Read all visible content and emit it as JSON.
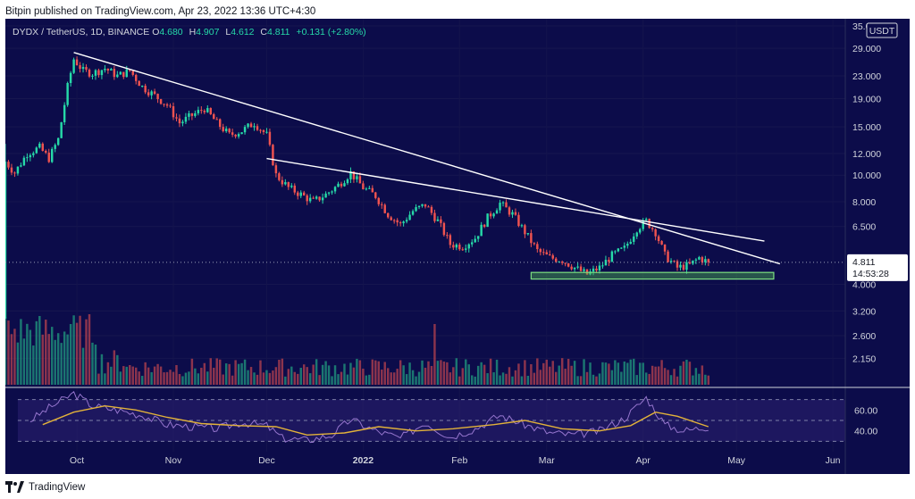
{
  "header": {
    "publisher": "Bitpin published on TradingView.com, Apr 23, 2022 13:36 UTC+4:30"
  },
  "legend": {
    "symbol": "DYDX / TetherUS, 1D, BINANCE",
    "open_label": "O",
    "open": "4.680",
    "high_label": "H",
    "high": "4.907",
    "low_label": "L",
    "low": "4.612",
    "close_label": "C",
    "close": "4.811",
    "change": "+0.131 (+2.80%)"
  },
  "price_axis": {
    "currency": "USDT",
    "current_price": "4.811",
    "countdown": "14:53:28"
  },
  "footer": {
    "brand": "TradingView"
  },
  "colors": {
    "background": "#0c0c4a",
    "up": "#26d9a8",
    "down": "#ef5350",
    "trendline": "#ffffff",
    "support_zone": "#4caf50",
    "rsi_line": "#9575cd",
    "rsi_ma": "#e2b23a"
  },
  "chart_data": [
    {
      "type": "candlestick",
      "scale": "log",
      "ylim": [
        2.0,
        35.0
      ],
      "yticks": [
        "35.000",
        "29.000",
        "23.000",
        "19.000",
        "15.000",
        "12.000",
        "10.000",
        "8.000",
        "6.500",
        "4.000",
        "3.200",
        "2.600",
        "2.150"
      ],
      "xticks": [
        "Oct",
        "Nov",
        "Dec",
        "2022",
        "Feb",
        "Mar",
        "Apr",
        "May",
        "Jun"
      ],
      "x_range": [
        "2021-09-08",
        "2022-06-05"
      ],
      "close_series": [
        {
          "date": "2021-09-08",
          "close": 11.2
        },
        {
          "date": "2021-09-11",
          "close": 10.2
        },
        {
          "date": "2021-09-15",
          "close": 12.0
        },
        {
          "date": "2021-09-19",
          "close": 12.6
        },
        {
          "date": "2021-09-22",
          "close": 11.5
        },
        {
          "date": "2021-09-25",
          "close": 13.5
        },
        {
          "date": "2021-09-28",
          "close": 21.0
        },
        {
          "date": "2021-09-30",
          "close": 26.5
        },
        {
          "date": "2021-10-03",
          "close": 24.0
        },
        {
          "date": "2021-10-06",
          "close": 23.5
        },
        {
          "date": "2021-10-10",
          "close": 24.5
        },
        {
          "date": "2021-10-14",
          "close": 23.0
        },
        {
          "date": "2021-10-18",
          "close": 24.0
        },
        {
          "date": "2021-10-22",
          "close": 21.0
        },
        {
          "date": "2021-10-26",
          "close": 19.5
        },
        {
          "date": "2021-10-30",
          "close": 18.0
        },
        {
          "date": "2021-11-03",
          "close": 15.5
        },
        {
          "date": "2021-11-07",
          "close": 16.5
        },
        {
          "date": "2021-11-11",
          "close": 17.5
        },
        {
          "date": "2021-11-15",
          "close": 15.5
        },
        {
          "date": "2021-11-19",
          "close": 14.0
        },
        {
          "date": "2021-11-23",
          "close": 14.5
        },
        {
          "date": "2021-11-27",
          "close": 15.5
        },
        {
          "date": "2021-12-01",
          "close": 14.0
        },
        {
          "date": "2021-12-04",
          "close": 10.0
        },
        {
          "date": "2021-12-08",
          "close": 9.0
        },
        {
          "date": "2021-12-12",
          "close": 8.5
        },
        {
          "date": "2021-12-16",
          "close": 8.0
        },
        {
          "date": "2021-12-20",
          "close": 8.5
        },
        {
          "date": "2021-12-24",
          "close": 9.2
        },
        {
          "date": "2021-12-28",
          "close": 10.2
        },
        {
          "date": "2022-01-01",
          "close": 9.0
        },
        {
          "date": "2022-01-05",
          "close": 8.4
        },
        {
          "date": "2022-01-09",
          "close": 7.2
        },
        {
          "date": "2022-01-13",
          "close": 6.6
        },
        {
          "date": "2022-01-17",
          "close": 7.4
        },
        {
          "date": "2022-01-21",
          "close": 7.8
        },
        {
          "date": "2022-01-25",
          "close": 6.8
        },
        {
          "date": "2022-01-29",
          "close": 5.6
        },
        {
          "date": "2022-02-02",
          "close": 5.5
        },
        {
          "date": "2022-02-06",
          "close": 5.9
        },
        {
          "date": "2022-02-10",
          "close": 7.0
        },
        {
          "date": "2022-02-14",
          "close": 7.9
        },
        {
          "date": "2022-02-18",
          "close": 7.2
        },
        {
          "date": "2022-02-22",
          "close": 6.2
        },
        {
          "date": "2022-02-26",
          "close": 5.3
        },
        {
          "date": "2022-03-02",
          "close": 5.0
        },
        {
          "date": "2022-03-06",
          "close": 4.9
        },
        {
          "date": "2022-03-10",
          "close": 4.6
        },
        {
          "date": "2022-03-14",
          "close": 4.35
        },
        {
          "date": "2022-03-18",
          "close": 4.6
        },
        {
          "date": "2022-03-22",
          "close": 5.1
        },
        {
          "date": "2022-03-26",
          "close": 5.4
        },
        {
          "date": "2022-03-30",
          "close": 6.4
        },
        {
          "date": "2022-04-02",
          "close": 6.8
        },
        {
          "date": "2022-04-05",
          "close": 6.2
        },
        {
          "date": "2022-04-08",
          "close": 5.1
        },
        {
          "date": "2022-04-12",
          "close": 4.6
        },
        {
          "date": "2022-04-16",
          "close": 4.7
        },
        {
          "date": "2022-04-19",
          "close": 5.0
        },
        {
          "date": "2022-04-22",
          "close": 4.811
        }
      ],
      "trendlines": [
        {
          "from": {
            "date": "2021-09-30",
            "price": 28.0
          },
          "to": {
            "date": "2022-05-15",
            "price": 4.75
          }
        },
        {
          "from": {
            "date": "2021-12-01",
            "price": 11.5
          },
          "to": {
            "date": "2022-05-10",
            "price": 5.75
          }
        }
      ],
      "support_zone": {
        "from_date": "2022-02-24",
        "to_date": "2022-05-13",
        "low": 4.18,
        "high": 4.42
      },
      "last_price": 4.811
    },
    {
      "type": "bar",
      "name": "volume",
      "x_range": [
        "2021-09-08",
        "2022-04-22"
      ],
      "note": "relative daily volume bars colored by candle direction"
    },
    {
      "type": "line",
      "name": "RSI",
      "ylim": [
        20,
        80
      ],
      "yticks": [
        "60.00",
        "40.00"
      ],
      "bands": [
        70,
        50,
        30
      ],
      "rsi_points": [
        {
          "date": "2021-09-16",
          "value": 50
        },
        {
          "date": "2021-09-22",
          "value": 62
        },
        {
          "date": "2021-09-30",
          "value": 76
        },
        {
          "date": "2021-10-06",
          "value": 64
        },
        {
          "date": "2021-10-14",
          "value": 60
        },
        {
          "date": "2021-10-22",
          "value": 55
        },
        {
          "date": "2021-10-30",
          "value": 46
        },
        {
          "date": "2021-11-07",
          "value": 44
        },
        {
          "date": "2021-11-15",
          "value": 42
        },
        {
          "date": "2021-11-23",
          "value": 48
        },
        {
          "date": "2021-12-01",
          "value": 45
        },
        {
          "date": "2021-12-06",
          "value": 33
        },
        {
          "date": "2021-12-14",
          "value": 31
        },
        {
          "date": "2021-12-22",
          "value": 36
        },
        {
          "date": "2021-12-28",
          "value": 51
        },
        {
          "date": "2022-01-05",
          "value": 40
        },
        {
          "date": "2022-01-13",
          "value": 33
        },
        {
          "date": "2022-01-21",
          "value": 48
        },
        {
          "date": "2022-01-29",
          "value": 34
        },
        {
          "date": "2022-02-06",
          "value": 42
        },
        {
          "date": "2022-02-14",
          "value": 55
        },
        {
          "date": "2022-02-22",
          "value": 46
        },
        {
          "date": "2022-03-02",
          "value": 38
        },
        {
          "date": "2022-03-10",
          "value": 36
        },
        {
          "date": "2022-03-18",
          "value": 40
        },
        {
          "date": "2022-03-26",
          "value": 52
        },
        {
          "date": "2022-04-02",
          "value": 72
        },
        {
          "date": "2022-04-08",
          "value": 46
        },
        {
          "date": "2022-04-14",
          "value": 40
        },
        {
          "date": "2022-04-22",
          "value": 44
        }
      ],
      "rsi_ma_points": [
        {
          "date": "2021-09-20",
          "value": 46
        },
        {
          "date": "2021-09-30",
          "value": 58
        },
        {
          "date": "2021-10-10",
          "value": 64
        },
        {
          "date": "2021-10-20",
          "value": 60
        },
        {
          "date": "2021-10-30",
          "value": 53
        },
        {
          "date": "2021-11-10",
          "value": 47
        },
        {
          "date": "2021-11-22",
          "value": 45
        },
        {
          "date": "2021-12-04",
          "value": 44
        },
        {
          "date": "2021-12-14",
          "value": 36
        },
        {
          "date": "2021-12-26",
          "value": 38
        },
        {
          "date": "2022-01-06",
          "value": 44
        },
        {
          "date": "2022-01-18",
          "value": 40
        },
        {
          "date": "2022-01-30",
          "value": 42
        },
        {
          "date": "2022-02-12",
          "value": 46
        },
        {
          "date": "2022-02-22",
          "value": 50
        },
        {
          "date": "2022-03-06",
          "value": 42
        },
        {
          "date": "2022-03-18",
          "value": 40
        },
        {
          "date": "2022-03-28",
          "value": 45
        },
        {
          "date": "2022-04-05",
          "value": 58
        },
        {
          "date": "2022-04-12",
          "value": 54
        },
        {
          "date": "2022-04-22",
          "value": 44
        }
      ]
    }
  ]
}
